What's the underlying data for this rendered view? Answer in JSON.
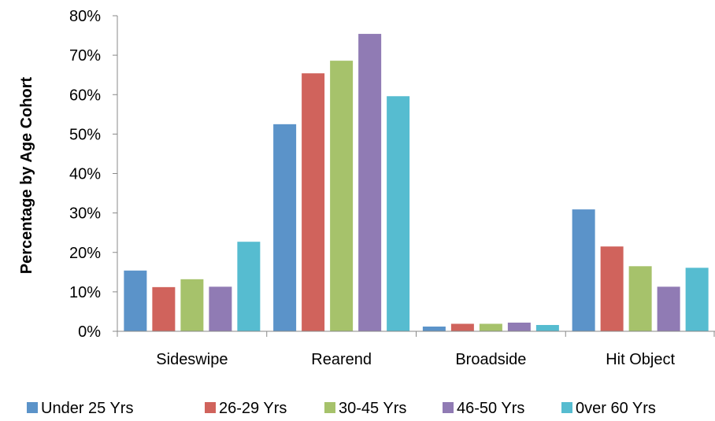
{
  "chart_data": {
    "type": "bar",
    "title": "",
    "xlabel": "",
    "ylabel": "Percentage by Age Cohort",
    "ylim": [
      0,
      80
    ],
    "yticks": [
      "0%",
      "10%",
      "20%",
      "30%",
      "40%",
      "50%",
      "60%",
      "70%",
      "80%"
    ],
    "categories": [
      "Sideswipe",
      "Rearend",
      "Broadside",
      "Hit Object"
    ],
    "series": [
      {
        "name": "Under 25 Yrs",
        "color": "#5b93c9",
        "values": [
          15.4,
          52.5,
          1.2,
          30.9
        ]
      },
      {
        "name": "26-29 Yrs",
        "color": "#d0635c",
        "values": [
          11.2,
          65.4,
          1.9,
          21.5
        ]
      },
      {
        "name": "30-45 Yrs",
        "color": "#a6c26b",
        "values": [
          13.2,
          68.6,
          1.9,
          16.5
        ]
      },
      {
        "name": "46-50 Yrs",
        "color": "#907bb4",
        "values": [
          11.3,
          75.4,
          2.2,
          11.3
        ]
      },
      {
        "name": "0ver 60 Yrs",
        "color": "#56bcd0",
        "values": [
          22.7,
          59.6,
          1.6,
          16.1
        ]
      }
    ],
    "grid": false,
    "legend": "bottom"
  }
}
